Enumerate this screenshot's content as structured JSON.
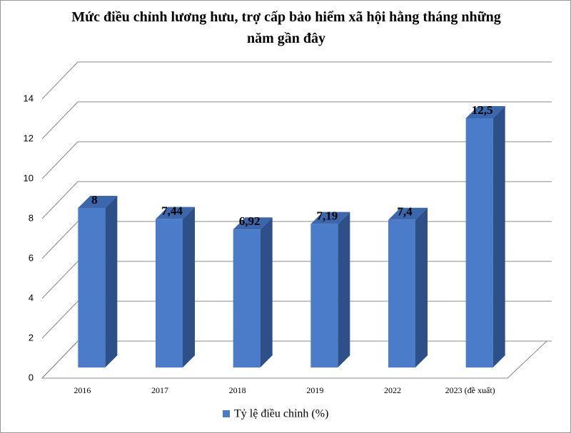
{
  "chart_data": {
    "type": "bar3d",
    "title": "Mức điều chỉnh lương hưu, trợ cấp bảo hiểm xã hội hằng tháng những năm gần đây",
    "categories": [
      "2016",
      "2017",
      "2018",
      "2019",
      "2022",
      "2023  (đề xuất)"
    ],
    "series": [
      {
        "name": "Tỷ lệ điều chỉnh (%)",
        "color": "#4a7cc9",
        "values": [
          8,
          7.44,
          6.92,
          7.19,
          7.4,
          12.5
        ],
        "value_labels": [
          "8",
          "7,44",
          "6,92",
          "7,19",
          "7,4",
          "12,5"
        ]
      }
    ],
    "ylim": [
      0,
      14
    ],
    "yticks": [
      0,
      2,
      4,
      6,
      8,
      10,
      12,
      14
    ],
    "grid": true,
    "legend": "bottom"
  }
}
